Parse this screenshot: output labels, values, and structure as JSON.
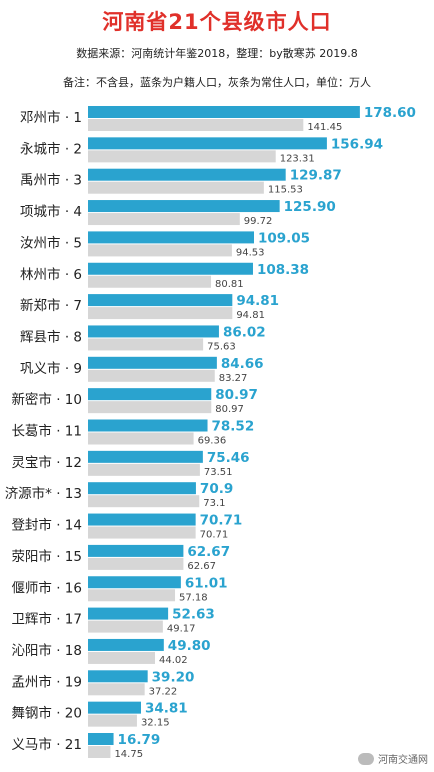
{
  "header": {
    "title": "河南省21个县级市人口",
    "source": "数据来源：河南统计年鉴2018，整理：by散寒苏 2019.8",
    "note": "备注：不含县，蓝条为户籍人口，灰条为常住人口，单位：万人"
  },
  "watermark": {
    "text": "河南交通网"
  },
  "colors": {
    "primary": "#2aa3cf",
    "secondary": "#d6d6d6",
    "title": "#e0302a"
  },
  "chart_data": {
    "type": "bar",
    "orientation": "horizontal",
    "categories": [
      "邓州市 · 1",
      "永城市 · 2",
      "禹州市 · 3",
      "项城市 · 4",
      "汝州市 · 5",
      "林州市 · 6",
      "新郑市 · 7",
      "辉县市 · 8",
      "巩义市 · 9",
      "新密市 · 10",
      "长葛市 · 11",
      "灵宝市 · 12",
      "济源市* · 13",
      "登封市 · 14",
      "荥阳市 · 15",
      "偃师市 · 16",
      "卫辉市 · 17",
      "沁阳市 · 18",
      "孟州市 · 19",
      "舞钢市 · 20",
      "义马市 · 21"
    ],
    "series": [
      {
        "values": [
          178.6,
          156.94,
          129.87,
          125.9,
          109.05,
          108.38,
          94.81,
          86.02,
          84.66,
          80.97,
          78.52,
          75.46,
          70.9,
          70.71,
          62.67,
          61.01,
          52.63,
          49.8,
          39.2,
          34.81,
          16.79
        ],
        "labels": [
          "178.60",
          "156.94",
          "129.87",
          "125.90",
          "109.05",
          "108.38",
          "94.81",
          "86.02",
          "84.66",
          "80.97",
          "78.52",
          "75.46",
          "70.9",
          "70.71",
          "62.67",
          "61.01",
          "52.63",
          "49.80",
          "39.20",
          "34.81",
          "16.79"
        ]
      },
      {
        "values": [
          141.45,
          123.31,
          115.53,
          99.72,
          94.53,
          80.81,
          94.81,
          75.63,
          83.27,
          80.97,
          69.36,
          73.51,
          73.1,
          70.71,
          62.67,
          57.18,
          49.17,
          44.02,
          37.22,
          32.15,
          14.75
        ],
        "labels": [
          "141.45",
          "123.31",
          "115.53",
          "99.72",
          "94.53",
          "80.81",
          "94.81",
          "75.63",
          "83.27",
          "80.97",
          "69.36",
          "73.51",
          "73.1",
          "70.71",
          "62.67",
          "57.18",
          "49.17",
          "44.02",
          "37.22",
          "32.15",
          "14.75"
        ]
      }
    ],
    "grid": false,
    "legend": "none"
  }
}
